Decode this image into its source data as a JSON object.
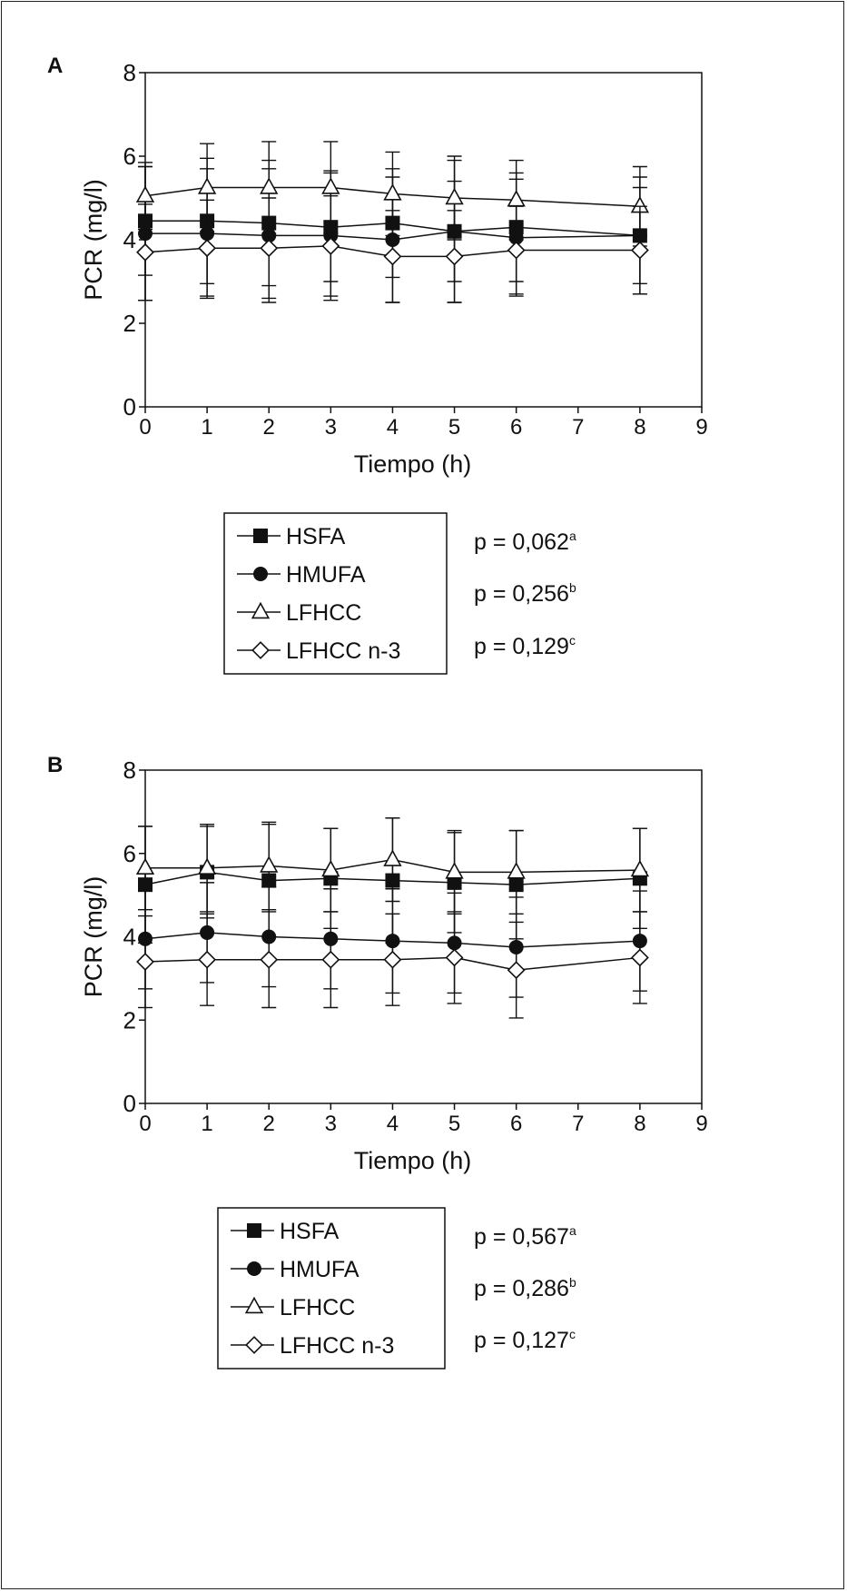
{
  "chart_data": [
    {
      "type": "line",
      "panel_label": "A",
      "xlabel": "Tiempo (h)",
      "ylabel": "PCR (mg/l)",
      "xlim": [
        0,
        9
      ],
      "ylim": [
        0,
        8
      ],
      "xticks": [
        "0",
        "1",
        "2",
        "3",
        "4",
        "5",
        "6",
        "7",
        "8",
        "9"
      ],
      "yticks": [
        "0",
        "2",
        "4",
        "6",
        "8"
      ],
      "grid": false,
      "legend_placement": "bottom",
      "x": [
        0,
        1,
        2,
        3,
        4,
        5,
        6,
        8
      ],
      "series": [
        {
          "name": "HSFA",
          "marker": "square-filled",
          "values": [
            4.45,
            4.45,
            4.4,
            4.3,
            4.4,
            4.2,
            4.3,
            4.1
          ],
          "err": [
            1.3,
            1.5,
            1.5,
            1.3,
            1.3,
            1.2,
            1.3,
            1.15
          ]
        },
        {
          "name": "HMUFA",
          "marker": "circle-filled",
          "values": [
            4.15,
            4.15,
            4.1,
            4.1,
            4.0,
            4.2,
            4.05,
            4.1
          ],
          "err": [
            1.6,
            1.55,
            1.6,
            1.55,
            1.5,
            1.7,
            1.4,
            1.4
          ]
        },
        {
          "name": "LFHCC",
          "marker": "triangle-open",
          "values": [
            5.05,
            5.25,
            5.25,
            5.25,
            5.1,
            5.0,
            4.95,
            4.8
          ],
          "err": [
            0.8,
            1.05,
            1.1,
            1.1,
            1.0,
            1.0,
            0.95,
            0.95
          ]
        },
        {
          "name": "LFHCC n-3",
          "marker": "diamond-open",
          "values": [
            3.7,
            3.8,
            3.8,
            3.85,
            3.6,
            3.6,
            3.75,
            3.75
          ],
          "err": [
            1.15,
            1.15,
            1.2,
            1.2,
            1.1,
            1.1,
            1.05,
            1.05
          ]
        }
      ],
      "stats": [
        "p = 0,062",
        "p = 0,256",
        "p = 0,129"
      ],
      "stats_sup": [
        "a",
        "b",
        "c"
      ]
    },
    {
      "type": "line",
      "panel_label": "B",
      "xlabel": "Tiempo (h)",
      "ylabel": "PCR (mg/l)",
      "xlim": [
        0,
        9
      ],
      "ylim": [
        0,
        8
      ],
      "xticks": [
        "0",
        "1",
        "2",
        "3",
        "4",
        "5",
        "6",
        "7",
        "8",
        "9"
      ],
      "yticks": [
        "0",
        "2",
        "4",
        "6",
        "8"
      ],
      "grid": false,
      "legend_placement": "bottom",
      "x": [
        0,
        1,
        2,
        3,
        4,
        5,
        6,
        8
      ],
      "series": [
        {
          "name": "HSFA",
          "marker": "square-filled",
          "values": [
            5.25,
            5.55,
            5.35,
            5.4,
            5.35,
            5.3,
            5.25,
            5.4
          ],
          "err": [
            1.4,
            1.1,
            1.35,
            1.2,
            1.5,
            1.2,
            1.3,
            1.2
          ]
        },
        {
          "name": "HMUFA",
          "marker": "circle-filled",
          "values": [
            3.95,
            4.1,
            4.0,
            3.95,
            3.9,
            3.85,
            3.75,
            3.9
          ],
          "err": [
            1.2,
            1.2,
            1.2,
            1.2,
            1.25,
            1.2,
            1.2,
            1.2
          ]
        },
        {
          "name": "LFHCC",
          "marker": "triangle-open",
          "values": [
            5.65,
            5.65,
            5.7,
            5.6,
            5.85,
            5.55,
            5.55,
            5.6
          ],
          "err": [
            1.0,
            1.05,
            1.05,
            1.0,
            1.0,
            1.0,
            1.0,
            1.0
          ]
        },
        {
          "name": "LFHCC n-3",
          "marker": "diamond-open",
          "values": [
            3.4,
            3.45,
            3.45,
            3.45,
            3.45,
            3.5,
            3.2,
            3.5
          ],
          "err": [
            1.1,
            1.1,
            1.15,
            1.15,
            1.1,
            1.1,
            1.15,
            1.1
          ]
        }
      ],
      "stats": [
        "p = 0,567",
        "p = 0,286",
        "p = 0,127"
      ],
      "stats_sup": [
        "a",
        "b",
        "c"
      ]
    }
  ]
}
